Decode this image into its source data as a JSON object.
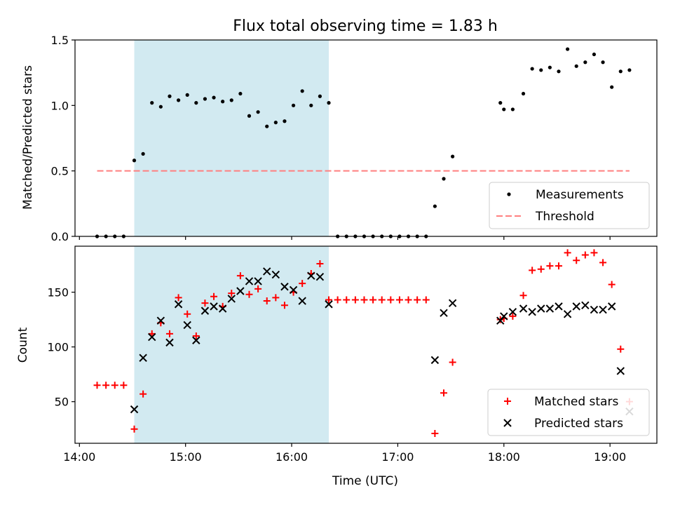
{
  "chart_data": [
    {
      "type": "scatter",
      "title": "Flux total observing time = 1.83 h",
      "ylabel": "Matched/Predicted stars",
      "xlabel": "",
      "ylim": [
        0,
        1.5
      ],
      "yticks": [
        "0.0",
        "0.5",
        "1.0",
        "1.5"
      ],
      "x_tick_times": [
        "14:00",
        "15:00",
        "16:00",
        "17:00",
        "18:00",
        "19:00"
      ],
      "shaded_span": [
        "14:31",
        "16:21"
      ],
      "shade_color": "#add8e6",
      "legend_position": "lower right",
      "series": [
        {
          "name": "Measurements",
          "marker": "dot",
          "color": "#000000",
          "x": [
            "14:10",
            "14:15",
            "14:20",
            "14:25",
            "14:31",
            "14:36",
            "14:41",
            "14:46",
            "14:51",
            "14:56",
            "15:01",
            "15:06",
            "15:11",
            "15:16",
            "15:21",
            "15:26",
            "15:31",
            "15:36",
            "15:41",
            "15:46",
            "15:51",
            "15:56",
            "16:01",
            "16:06",
            "16:11",
            "16:16",
            "16:21",
            "16:26",
            "16:31",
            "16:36",
            "16:41",
            "16:46",
            "16:51",
            "16:56",
            "17:01",
            "17:06",
            "17:11",
            "17:16",
            "17:21",
            "17:26",
            "17:31",
            "17:58",
            "18:00",
            "18:05",
            "18:11",
            "18:16",
            "18:21",
            "18:26",
            "18:31",
            "18:36",
            "18:41",
            "18:46",
            "18:51",
            "18:56",
            "19:01",
            "19:06",
            "19:11"
          ],
          "y": [
            0.0,
            0.0,
            0.0,
            0.0,
            0.58,
            0.63,
            1.02,
            0.99,
            1.07,
            1.04,
            1.08,
            1.02,
            1.05,
            1.06,
            1.03,
            1.04,
            1.09,
            0.92,
            0.95,
            0.84,
            0.87,
            0.88,
            1.0,
            1.11,
            1.0,
            1.07,
            1.02,
            0.0,
            0.0,
            0.0,
            0.0,
            0.0,
            0.0,
            0.0,
            0.0,
            0.0,
            0.0,
            0.0,
            0.23,
            0.44,
            0.61,
            1.02,
            0.97,
            0.97,
            1.09,
            1.28,
            1.27,
            1.29,
            1.26,
            1.43,
            1.3,
            1.33,
            1.39,
            1.33,
            1.14,
            1.26,
            1.27
          ]
        },
        {
          "name": "Threshold",
          "marker": "dashed-line",
          "color": "#ff7f7f",
          "x": [
            "14:10",
            "19:11"
          ],
          "y": [
            0.5,
            0.5
          ]
        }
      ]
    },
    {
      "type": "scatter",
      "title": "",
      "ylabel": "Count",
      "xlabel": "Time (UTC)",
      "ylim": [
        12,
        192
      ],
      "yticks": [
        "50",
        "100",
        "150"
      ],
      "x_tick_times": [
        "14:00",
        "15:00",
        "16:00",
        "17:00",
        "18:00",
        "19:00"
      ],
      "x_tick_labels": [
        "14:00",
        "15:00",
        "16:00",
        "17:00",
        "18:00",
        "19:00"
      ],
      "shaded_span": [
        "14:31",
        "16:21"
      ],
      "shade_color": "#add8e6",
      "legend_position": "lower right",
      "series": [
        {
          "name": "Matched stars",
          "marker": "plus",
          "color": "#ff0000",
          "x": [
            "14:10",
            "14:15",
            "14:20",
            "14:25",
            "14:31",
            "14:36",
            "14:41",
            "14:46",
            "14:51",
            "14:56",
            "15:01",
            "15:06",
            "15:11",
            "15:16",
            "15:21",
            "15:26",
            "15:31",
            "15:36",
            "15:41",
            "15:46",
            "15:51",
            "15:56",
            "16:01",
            "16:06",
            "16:11",
            "16:16",
            "16:21",
            "16:26",
            "16:31",
            "16:36",
            "16:41",
            "16:46",
            "16:51",
            "16:56",
            "17:01",
            "17:06",
            "17:11",
            "17:16",
            "17:21",
            "17:26",
            "17:31",
            "17:58",
            "18:00",
            "18:05",
            "18:11",
            "18:16",
            "18:21",
            "18:26",
            "18:31",
            "18:36",
            "18:41",
            "18:46",
            "18:51",
            "18:56",
            "19:01",
            "19:06",
            "19:11"
          ],
          "y": [
            65,
            65,
            65,
            65,
            25,
            57,
            112,
            122,
            112,
            145,
            130,
            110,
            140,
            146,
            137,
            149,
            165,
            148,
            153,
            142,
            145,
            138,
            150,
            158,
            167,
            176,
            143,
            143,
            143,
            143,
            143,
            143,
            143,
            143,
            143,
            143,
            143,
            143,
            21,
            58,
            86,
            125,
            126,
            128,
            147,
            170,
            171,
            174,
            174,
            186,
            179,
            184,
            186,
            177,
            157,
            98,
            50
          ]
        },
        {
          "name": "Predicted stars",
          "marker": "x",
          "color": "#000000",
          "x": [
            "14:31",
            "14:36",
            "14:41",
            "14:46",
            "14:51",
            "14:56",
            "15:01",
            "15:06",
            "15:11",
            "15:16",
            "15:21",
            "15:26",
            "15:31",
            "15:36",
            "15:41",
            "15:46",
            "15:51",
            "15:56",
            "16:01",
            "16:06",
            "16:11",
            "16:16",
            "16:21",
            "17:21",
            "17:26",
            "17:31",
            "17:58",
            "18:00",
            "18:05",
            "18:11",
            "18:16",
            "18:21",
            "18:26",
            "18:31",
            "18:36",
            "18:41",
            "18:46",
            "18:51",
            "18:56",
            "19:01",
            "19:06",
            "19:11"
          ],
          "y": [
            43,
            90,
            109,
            124,
            104,
            139,
            120,
            106,
            133,
            137,
            135,
            144,
            151,
            160,
            160,
            169,
            166,
            155,
            152,
            142,
            165,
            164,
            139,
            88,
            131,
            140,
            124,
            128,
            132,
            135,
            132,
            135,
            135,
            137,
            130,
            137,
            138,
            134,
            134,
            137,
            78,
            41
          ]
        }
      ]
    }
  ]
}
